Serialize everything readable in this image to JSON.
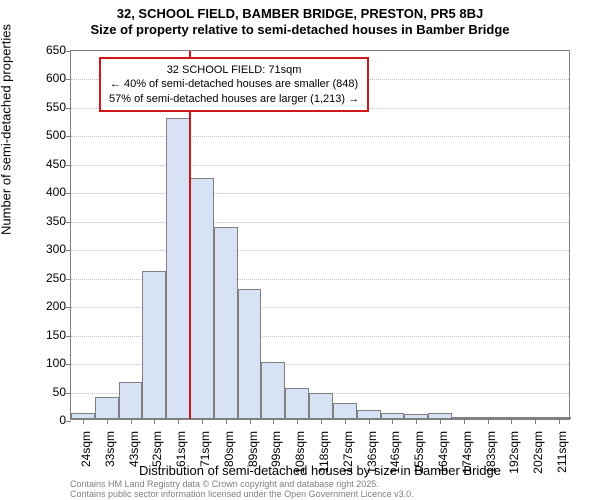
{
  "title": {
    "line1": "32, SCHOOL FIELD, BAMBER BRIDGE, PRESTON, PR5 8BJ",
    "line2": "Size of property relative to semi-detached houses in Bamber Bridge"
  },
  "chart": {
    "type": "histogram",
    "background_color": "#ffffff",
    "grid_color": "#c0c0c0",
    "border_color": "#808080",
    "bar_fill": "#d7e2f4",
    "bar_border": "#808080",
    "marker_color": "#d01818",
    "annotation_border": "#d01818",
    "ylabel": "Number of semi-detached properties",
    "xlabel": "Distribution of semi-detached houses by size in Bamber Bridge",
    "ylim": [
      0,
      650
    ],
    "ytick_step": 50,
    "yticks": [
      0,
      50,
      100,
      150,
      200,
      250,
      300,
      350,
      400,
      450,
      500,
      550,
      600,
      650
    ],
    "xtick_labels": [
      "24sqm",
      "33sqm",
      "43sqm",
      "52sqm",
      "61sqm",
      "71sqm",
      "80sqm",
      "89sqm",
      "99sqm",
      "108sqm",
      "118sqm",
      "127sqm",
      "136sqm",
      "146sqm",
      "155sqm",
      "164sqm",
      "174sqm",
      "183sqm",
      "192sqm",
      "202sqm",
      "211sqm"
    ],
    "bars": [
      {
        "x": 24,
        "value": 10
      },
      {
        "x": 33,
        "value": 38
      },
      {
        "x": 43,
        "value": 65
      },
      {
        "x": 52,
        "value": 260
      },
      {
        "x": 61,
        "value": 528
      },
      {
        "x": 71,
        "value": 423
      },
      {
        "x": 80,
        "value": 338
      },
      {
        "x": 89,
        "value": 228
      },
      {
        "x": 99,
        "value": 100
      },
      {
        "x": 108,
        "value": 55
      },
      {
        "x": 118,
        "value": 45
      },
      {
        "x": 127,
        "value": 28
      },
      {
        "x": 136,
        "value": 15
      },
      {
        "x": 146,
        "value": 10
      },
      {
        "x": 155,
        "value": 8
      },
      {
        "x": 164,
        "value": 11
      },
      {
        "x": 174,
        "value": 3
      },
      {
        "x": 183,
        "value": 2
      },
      {
        "x": 192,
        "value": 2
      },
      {
        "x": 202,
        "value": 1
      },
      {
        "x": 211,
        "value": 1
      }
    ],
    "marker_x_index": 5,
    "annotation": {
      "line1": "32 SCHOOL FIELD: 71sqm",
      "line2": "← 40% of semi-detached houses are smaller (848)",
      "line3": "57% of semi-detached houses are larger (1,213) →"
    },
    "label_fontsize": 13,
    "tick_fontsize": 12,
    "annotation_fontsize": 11
  },
  "footnote": {
    "line1": "Contains HM Land Registry data © Crown copyright and database right 2025.",
    "line2": "Contains public sector information licensed under the Open Government Licence v3.0."
  }
}
